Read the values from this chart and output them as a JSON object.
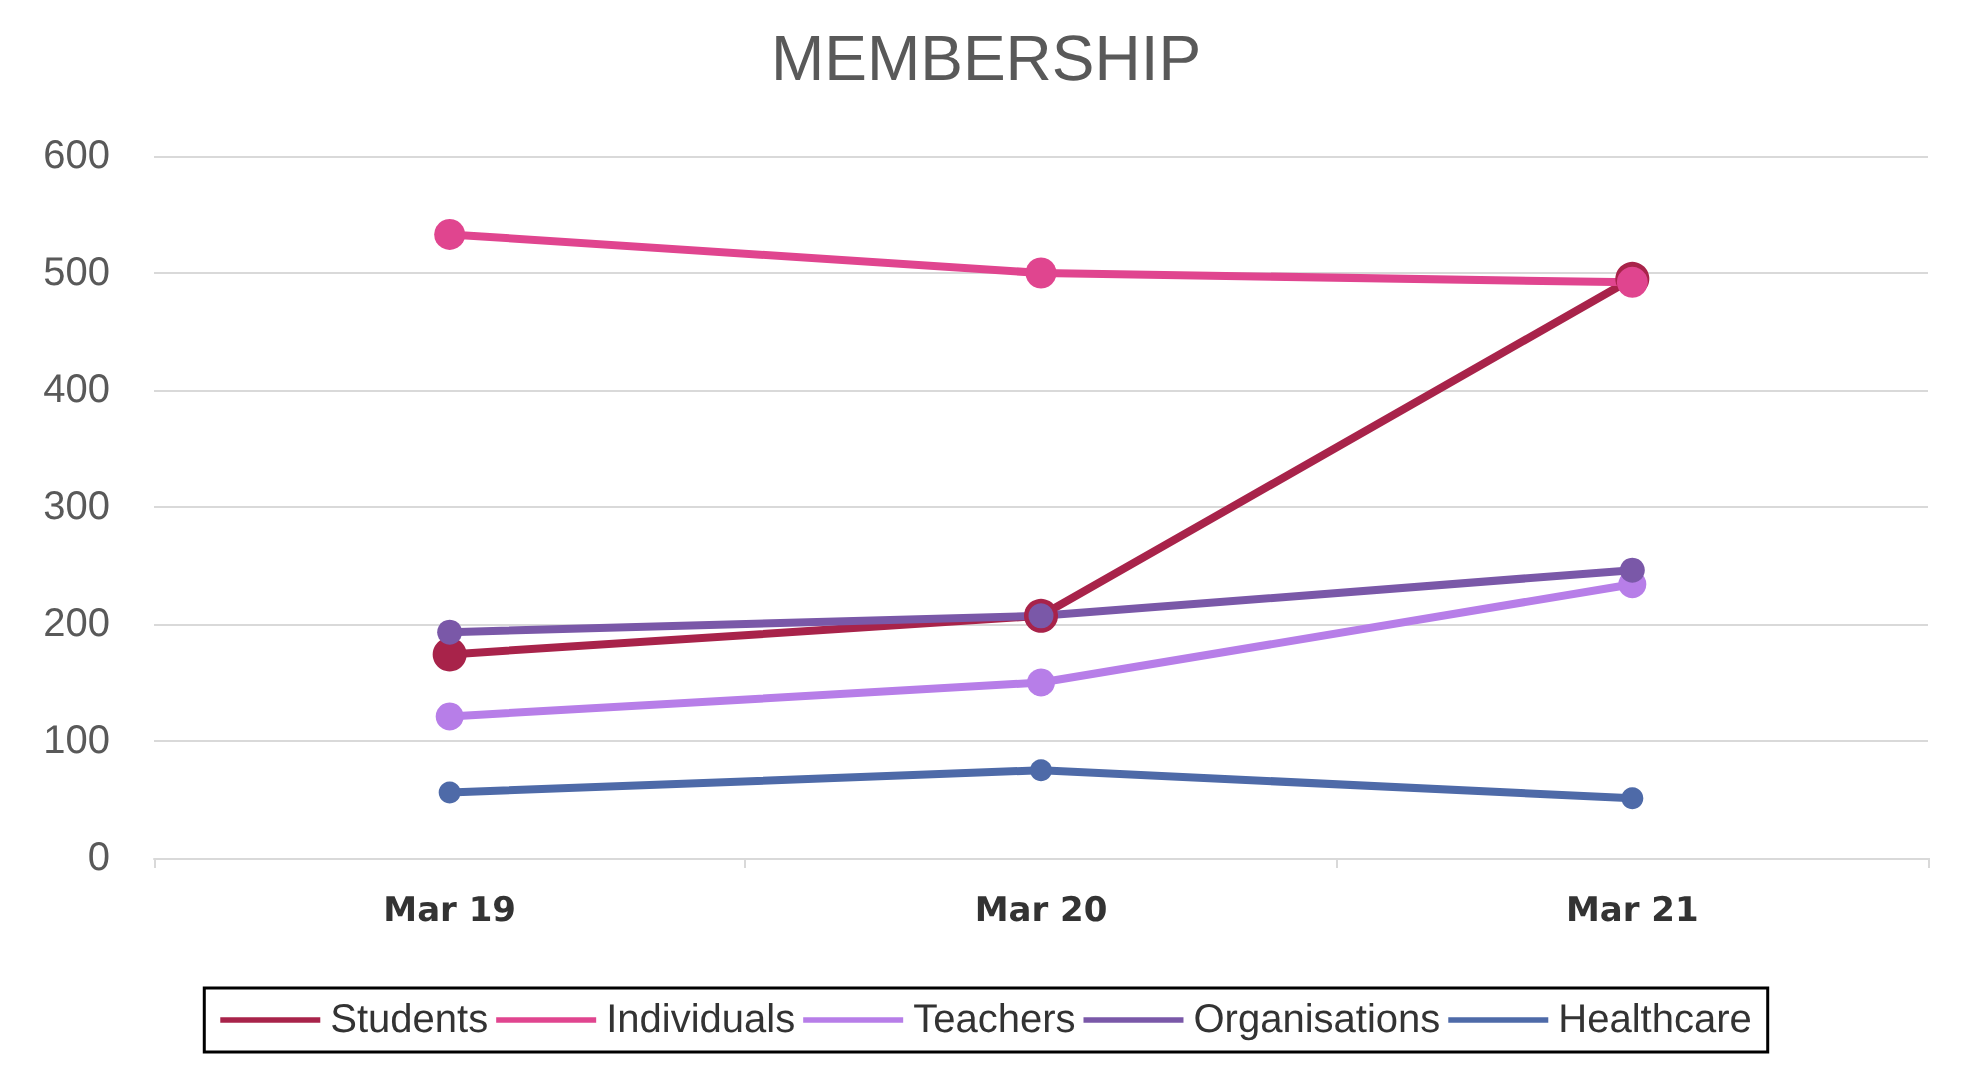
{
  "chart_data": {
    "type": "line",
    "title": "MEMBERSHIP",
    "categories": [
      "Mar 19",
      "Mar 20",
      "Mar 21"
    ],
    "series": [
      {
        "name": "Students",
        "color": "#a8234a",
        "values": [
          174,
          207,
          495
        ]
      },
      {
        "name": "Individuals",
        "color": "#e0458f",
        "values": [
          533,
          500,
          492
        ]
      },
      {
        "name": "Teachers",
        "color": "#b77ee8",
        "values": [
          121,
          150,
          234
        ]
      },
      {
        "name": "Organisations",
        "color": "#7a58a8",
        "values": [
          193,
          207,
          246
        ]
      },
      {
        "name": "Healthcare",
        "color": "#4e6aa8",
        "values": [
          56,
          75,
          51
        ]
      }
    ],
    "ylim": [
      0,
      600
    ],
    "yticks": [
      0,
      100,
      200,
      300,
      400,
      500,
      600
    ],
    "grid": "y",
    "legend": "bottom",
    "marker": "circle",
    "line_style": "solid"
  }
}
